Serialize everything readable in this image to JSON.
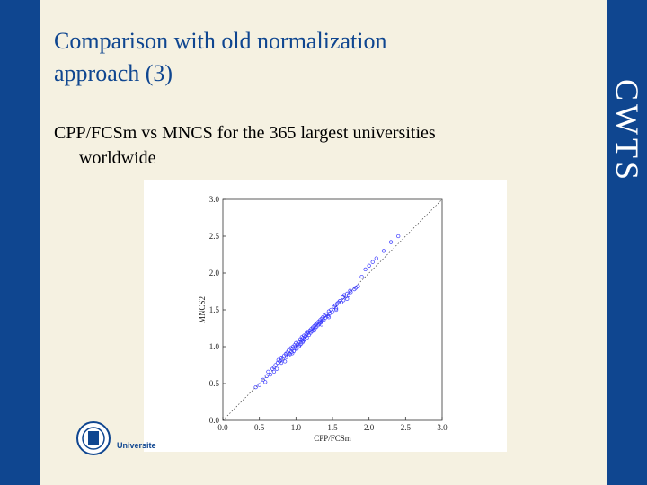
{
  "slide": {
    "title": "Comparison with old normalization approach (3)",
    "title_line1": "Comparison with old normalization",
    "title_line2": "approach (3)",
    "body": "CPP/FCSm vs MNCS for the 365 largest universities worldwide",
    "body_line1": "CPP/FCSm vs MNCS for the 365 largest universities",
    "body_line2": "worldwide",
    "logo": "CWTS",
    "university_label": "Universite"
  },
  "colors": {
    "bar": "#0f4690",
    "slide_bg": "#f5f1e1",
    "title": "#0f4690",
    "points": "#3b3bff"
  },
  "chart_data": {
    "type": "scatter",
    "xlabel": "CPP/FCSm",
    "ylabel": "MNCS2",
    "xlim": [
      0.0,
      3.0
    ],
    "ylim": [
      0.0,
      3.0
    ],
    "xticks": [
      "0.0",
      "0.5",
      "1.0",
      "1.5",
      "2.0",
      "2.5",
      "3.0"
    ],
    "yticks": [
      "0.0",
      "0.5",
      "1.0",
      "1.5",
      "2.0",
      "2.5",
      "3.0"
    ],
    "reference_line": "y = x",
    "grid": false,
    "legend": "none",
    "points": [
      [
        0.45,
        0.45
      ],
      [
        0.5,
        0.48
      ],
      [
        0.55,
        0.55
      ],
      [
        0.6,
        0.6
      ],
      [
        0.62,
        0.66
      ],
      [
        0.65,
        0.62
      ],
      [
        0.68,
        0.7
      ],
      [
        0.7,
        0.72
      ],
      [
        0.72,
        0.75
      ],
      [
        0.74,
        0.7
      ],
      [
        0.75,
        0.78
      ],
      [
        0.76,
        0.82
      ],
      [
        0.78,
        0.8
      ],
      [
        0.8,
        0.85
      ],
      [
        0.8,
        0.78
      ],
      [
        0.82,
        0.83
      ],
      [
        0.84,
        0.88
      ],
      [
        0.85,
        0.8
      ],
      [
        0.86,
        0.9
      ],
      [
        0.87,
        0.86
      ],
      [
        0.88,
        0.92
      ],
      [
        0.9,
        0.88
      ],
      [
        0.9,
        0.95
      ],
      [
        0.92,
        0.9
      ],
      [
        0.93,
        0.98
      ],
      [
        0.94,
        0.93
      ],
      [
        0.95,
        0.97
      ],
      [
        0.96,
        1.0
      ],
      [
        0.97,
        0.94
      ],
      [
        0.98,
        1.02
      ],
      [
        0.99,
        0.98
      ],
      [
        1.0,
        1.0
      ],
      [
        1.0,
        1.05
      ],
      [
        1.01,
        0.97
      ],
      [
        1.02,
        1.03
      ],
      [
        1.03,
        1.07
      ],
      [
        1.04,
        1.0
      ],
      [
        1.05,
        1.06
      ],
      [
        1.06,
        1.1
      ],
      [
        1.07,
        1.04
      ],
      [
        1.08,
        1.09
      ],
      [
        1.08,
        1.13
      ],
      [
        1.09,
        1.06
      ],
      [
        1.1,
        1.12
      ],
      [
        1.1,
        1.08
      ],
      [
        1.11,
        1.15
      ],
      [
        1.12,
        1.1
      ],
      [
        1.13,
        1.14
      ],
      [
        1.14,
        1.17
      ],
      [
        1.15,
        1.12
      ],
      [
        1.16,
        1.18
      ],
      [
        1.17,
        1.2
      ],
      [
        1.18,
        1.16
      ],
      [
        1.19,
        1.22
      ],
      [
        1.2,
        1.19
      ],
      [
        1.21,
        1.24
      ],
      [
        1.22,
        1.21
      ],
      [
        1.23,
        1.26
      ],
      [
        1.24,
        1.23
      ],
      [
        1.25,
        1.28
      ],
      [
        1.26,
        1.25
      ],
      [
        1.27,
        1.3
      ],
      [
        1.28,
        1.27
      ],
      [
        1.29,
        1.32
      ],
      [
        1.3,
        1.29
      ],
      [
        1.31,
        1.34
      ],
      [
        1.32,
        1.31
      ],
      [
        1.33,
        1.36
      ],
      [
        1.34,
        1.33
      ],
      [
        1.35,
        1.38
      ],
      [
        1.36,
        1.35
      ],
      [
        1.37,
        1.4
      ],
      [
        1.38,
        1.36
      ],
      [
        1.39,
        1.42
      ],
      [
        1.4,
        1.39
      ],
      [
        1.42,
        1.44
      ],
      [
        1.44,
        1.42
      ],
      [
        1.45,
        1.48
      ],
      [
        1.46,
        1.45
      ],
      [
        1.48,
        1.5
      ],
      [
        1.5,
        1.47
      ],
      [
        1.52,
        1.54
      ],
      [
        1.54,
        1.56
      ],
      [
        1.55,
        1.52
      ],
      [
        1.56,
        1.58
      ],
      [
        1.58,
        1.6
      ],
      [
        1.6,
        1.62
      ],
      [
        1.62,
        1.6
      ],
      [
        1.64,
        1.67
      ],
      [
        1.65,
        1.63
      ],
      [
        1.66,
        1.7
      ],
      [
        1.68,
        1.68
      ],
      [
        1.7,
        1.72
      ],
      [
        1.72,
        1.7
      ],
      [
        1.74,
        1.76
      ],
      [
        1.75,
        1.74
      ],
      [
        1.8,
        1.78
      ],
      [
        1.82,
        1.8
      ],
      [
        1.85,
        1.82
      ],
      [
        1.9,
        1.95
      ],
      [
        1.95,
        2.05
      ],
      [
        2.0,
        2.1
      ],
      [
        2.05,
        2.15
      ],
      [
        2.1,
        2.2
      ],
      [
        2.2,
        2.3
      ],
      [
        2.3,
        2.42
      ],
      [
        2.4,
        2.5
      ],
      [
        0.58,
        0.52
      ],
      [
        0.7,
        0.66
      ],
      [
        0.95,
        0.91
      ],
      [
        1.05,
        1.02
      ],
      [
        1.15,
        1.2
      ],
      [
        1.25,
        1.22
      ],
      [
        1.35,
        1.3
      ],
      [
        1.45,
        1.4
      ],
      [
        1.55,
        1.5
      ],
      [
        1.7,
        1.65
      ]
    ]
  }
}
